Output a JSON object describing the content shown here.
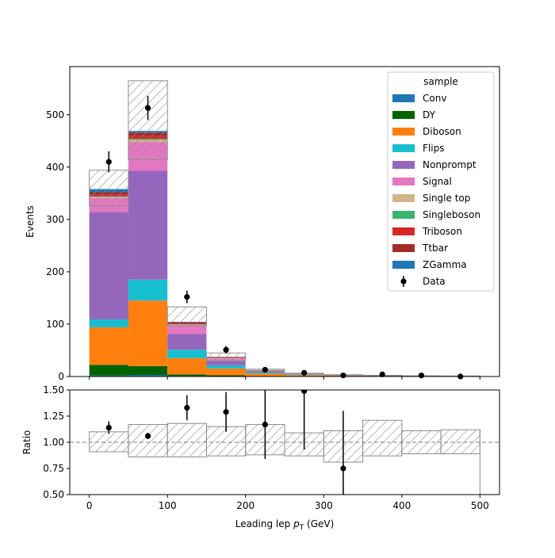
{
  "chart_data": {
    "type": "bar",
    "xlabel_prefix": "Leading lep ",
    "xlabel_symbol": "p",
    "xlabel_sub": "T",
    "xlabel_suffix": " (GeV)",
    "xlim": [
      -25,
      525
    ],
    "bin_edges": [
      0,
      50,
      100,
      150,
      200,
      250,
      300,
      350,
      400,
      450,
      500
    ],
    "x_ticks": [
      0,
      100,
      200,
      300,
      400,
      500
    ],
    "main_panel": {
      "ylabel": "Events",
      "ylim": [
        0,
        592
      ],
      "y_ticks": [
        0,
        100,
        200,
        300,
        400,
        500
      ],
      "stacked": true,
      "series": [
        {
          "name": "Conv",
          "color": "#1f77b4",
          "values": [
            2,
            3,
            1,
            0.3,
            0.1,
            0,
            0,
            0,
            0,
            0
          ]
        },
        {
          "name": "DY",
          "color": "#006400",
          "values": [
            20,
            17,
            3,
            2,
            0.5,
            0.2,
            0.1,
            0,
            0,
            0
          ]
        },
        {
          "name": "Diboson",
          "color": "#ff7f0e",
          "values": [
            72,
            125,
            31,
            13,
            5,
            2.5,
            1.5,
            1,
            0.7,
            0.5
          ]
        },
        {
          "name": "Flips",
          "color": "#17becf",
          "values": [
            15,
            40,
            16,
            6,
            2,
            0.8,
            0.4,
            0.2,
            0.1,
            0.1
          ]
        },
        {
          "name": "Nonprompt",
          "color": "#9467bd",
          "values": [
            205,
            208,
            30,
            8,
            2,
            0.8,
            0.3,
            0.2,
            0.1,
            0.1
          ]
        },
        {
          "name": "Signal",
          "color": "#e377c2",
          "values": [
            27,
            55,
            17,
            5,
            1.5,
            0.6,
            0.3,
            0.2,
            0.1,
            0.1
          ]
        },
        {
          "name": "Single top",
          "color": "#d2b48c",
          "values": [
            2,
            4,
            1,
            0.5,
            0.2,
            0.1,
            0,
            0,
            0,
            0
          ]
        },
        {
          "name": "Singleboson",
          "color": "#3cb371",
          "values": [
            1,
            2,
            0.5,
            0.2,
            0.1,
            0,
            0,
            0,
            0,
            0
          ]
        },
        {
          "name": "Triboson",
          "color": "#d62728",
          "values": [
            3,
            5,
            2,
            1,
            0.4,
            0.2,
            0.1,
            0.1,
            0,
            0
          ]
        },
        {
          "name": "Ttbar",
          "color": "#a52a2a",
          "values": [
            5,
            7,
            2,
            1,
            0.3,
            0.1,
            0,
            0,
            0,
            0
          ]
        },
        {
          "name": "ZGamma",
          "color": "#1f77b4",
          "values": [
            6,
            3,
            1,
            0.5,
            0.2,
            0.1,
            0,
            0,
            0,
            0
          ]
        }
      ],
      "uncertainty_band": {
        "low": [
          326,
          414,
          97,
          30,
          10.5,
          4.9,
          2.5,
          1.6,
          1.0,
          0.8
        ],
        "high": [
          394,
          565,
          133,
          45,
          14.0,
          6.2,
          3.4,
          2.2,
          1.4,
          1.0
        ]
      },
      "data": {
        "name": "Data",
        "x": [
          25,
          75,
          125,
          175,
          225,
          275,
          325,
          375,
          425,
          475
        ],
        "y": [
          410,
          513,
          152,
          51,
          13,
          7,
          2,
          4,
          2,
          0
        ],
        "err": [
          20,
          23,
          12,
          7,
          3.6,
          2.6,
          1.4,
          2,
          1.4,
          0
        ]
      },
      "legend": {
        "title": "sample",
        "placement": "upper right"
      }
    },
    "ratio_panel": {
      "ylabel": "Ratio",
      "ylim": [
        0.5,
        1.5
      ],
      "y_ticks": [
        "0.50",
        "0.75",
        "1.00",
        "1.25",
        "1.50"
      ],
      "y_tick_values": [
        0.5,
        0.75,
        1.0,
        1.25,
        1.5
      ],
      "reference_line": 1.0,
      "band_low": [
        0.91,
        0.86,
        0.86,
        0.87,
        0.88,
        0.87,
        0.81,
        0.87,
        0.89,
        0.89
      ],
      "band_high": [
        1.1,
        1.17,
        1.18,
        1.15,
        1.17,
        1.09,
        1.11,
        1.21,
        1.11,
        1.12
      ],
      "points": {
        "x": [
          25,
          75,
          125,
          175,
          225,
          275,
          325
        ],
        "y": [
          1.14,
          1.06,
          1.33,
          1.29,
          1.17,
          1.49,
          0.75
        ],
        "err": [
          0.06,
          0.03,
          0.12,
          0.19,
          0.33,
          0.56,
          0.55
        ]
      }
    }
  }
}
